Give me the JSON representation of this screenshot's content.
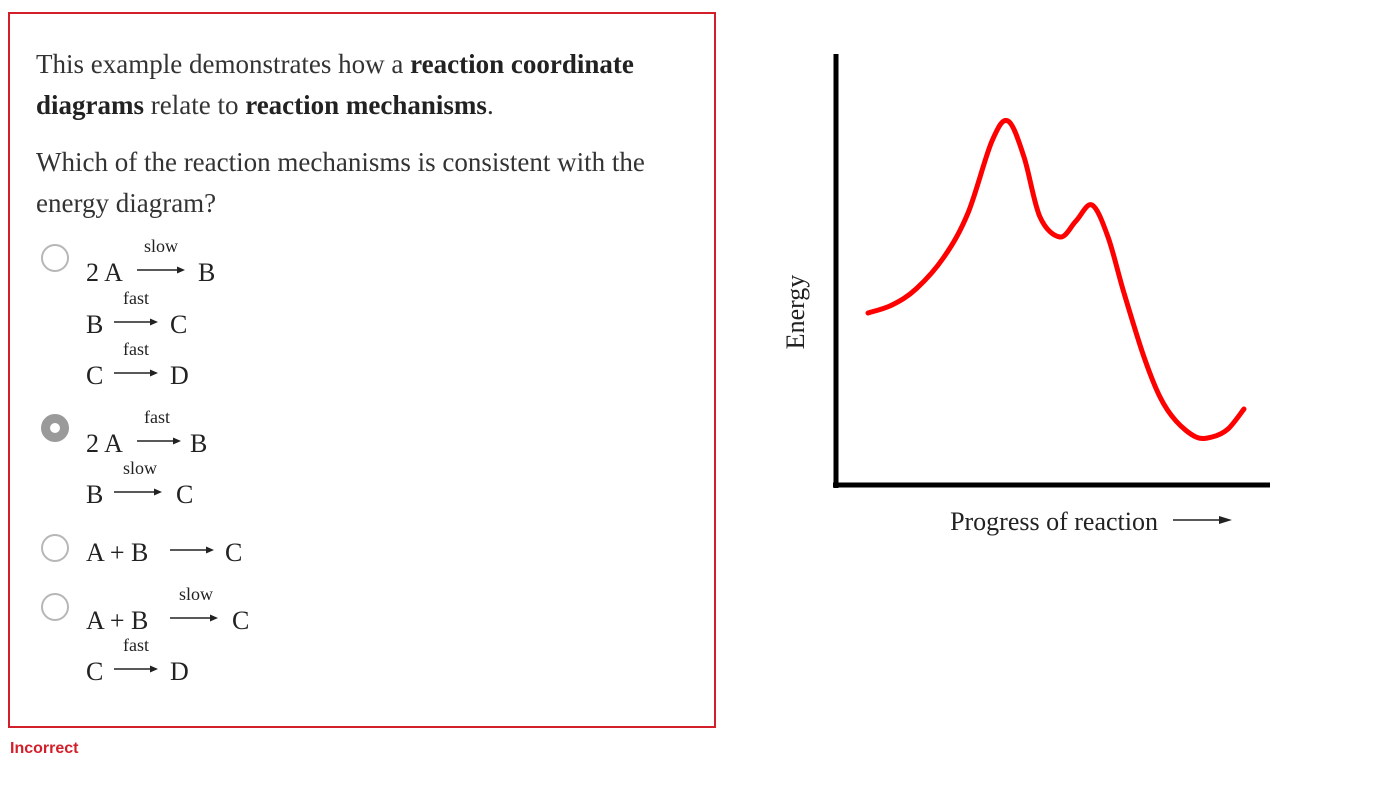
{
  "question": {
    "intro_prefix": "This example demonstrates how a ",
    "intro_bold1": "reaction coordinate diagrams",
    "intro_mid": " relate to ",
    "intro_bold2": "reaction mechanisms",
    "intro_suffix": ".",
    "prompt": "Which of the reaction mechanisms is consistent with the energy diagram?"
  },
  "options": [
    {
      "selected": false,
      "steps": [
        {
          "reactant": "2 A",
          "condition": "slow",
          "product": "B"
        },
        {
          "reactant": "B",
          "condition": "fast",
          "product": "C"
        },
        {
          "reactant": "C",
          "condition": "fast",
          "product": "D"
        }
      ]
    },
    {
      "selected": true,
      "steps": [
        {
          "reactant": "2 A",
          "condition": "fast",
          "product": "B"
        },
        {
          "reactant": "B",
          "condition": "slow",
          "product": "C"
        }
      ]
    },
    {
      "selected": false,
      "steps": [
        {
          "reactant": "A + B",
          "condition": "",
          "product": "C"
        }
      ]
    },
    {
      "selected": false,
      "steps": [
        {
          "reactant": "A + B",
          "condition": "slow",
          "product": "C"
        },
        {
          "reactant": "C",
          "condition": "fast",
          "product": "D"
        }
      ]
    }
  ],
  "feedback": "Incorrect",
  "chart_data": {
    "type": "line",
    "title": "",
    "xlabel": "Progress of reaction",
    "ylabel": "Energy",
    "grid": false,
    "legend": "none",
    "curve_color": "#ff0000",
    "axis_color": "#000000",
    "xlim": [
      0,
      10
    ],
    "ylim": [
      0,
      10
    ],
    "series": [
      {
        "x": [
          0.0,
          0.6,
          1.2,
          1.9,
          2.5,
          3.1,
          3.5,
          3.9,
          4.3,
          4.8,
          5.2,
          5.6,
          6.0,
          6.4,
          6.9,
          7.3,
          7.7,
          8.2,
          8.6,
          9.0,
          9.4
        ],
        "y": [
          4.3,
          4.5,
          4.9,
          5.7,
          6.8,
          8.6,
          9.1,
          8.2,
          6.7,
          6.2,
          6.6,
          7.0,
          6.2,
          4.8,
          3.2,
          2.2,
          1.6,
          1.2,
          1.2,
          1.4,
          1.9
        ]
      }
    ]
  }
}
